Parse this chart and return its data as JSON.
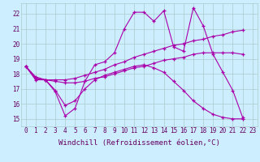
{
  "xlabel": "Windchill (Refroidissement éolien,°C)",
  "ylabel": "",
  "background_color": "#cceeff",
  "line_color": "#aa00aa",
  "grid_color": "#aacccc",
  "xlim": [
    -0.5,
    23.5
  ],
  "ylim": [
    14.5,
    22.7
  ],
  "yticks": [
    15,
    16,
    17,
    18,
    19,
    20,
    21,
    22
  ],
  "xticks": [
    0,
    1,
    2,
    3,
    4,
    5,
    6,
    7,
    8,
    9,
    10,
    11,
    12,
    13,
    14,
    15,
    16,
    17,
    18,
    19,
    20,
    21,
    22,
    23
  ],
  "series": [
    [
      18.5,
      17.6,
      17.6,
      16.8,
      15.2,
      15.7,
      17.5,
      18.6,
      18.8,
      19.4,
      21.0,
      22.1,
      22.1,
      21.5,
      22.2,
      19.8,
      19.5,
      22.4,
      21.2,
      19.3,
      18.1,
      16.9,
      15.1,
      null
    ],
    [
      18.5,
      17.7,
      17.6,
      17.6,
      17.6,
      17.7,
      17.9,
      18.1,
      18.3,
      18.6,
      18.8,
      19.1,
      19.3,
      19.5,
      19.7,
      19.9,
      20.0,
      20.2,
      20.3,
      20.5,
      20.6,
      20.8,
      20.9,
      null
    ],
    [
      18.5,
      17.8,
      17.6,
      17.5,
      17.4,
      17.4,
      17.5,
      17.7,
      17.8,
      18.0,
      18.2,
      18.4,
      18.5,
      18.7,
      18.9,
      19.0,
      19.1,
      19.3,
      19.4,
      19.4,
      19.4,
      19.4,
      19.3,
      null
    ],
    [
      18.5,
      17.7,
      17.6,
      16.9,
      15.9,
      16.2,
      17.0,
      17.6,
      17.9,
      18.1,
      18.3,
      18.5,
      18.6,
      18.4,
      18.1,
      17.5,
      16.9,
      16.2,
      15.7,
      15.3,
      15.1,
      15.0,
      15.0,
      null
    ]
  ],
  "tick_fontsize": 5.5,
  "label_fontsize": 6.5
}
